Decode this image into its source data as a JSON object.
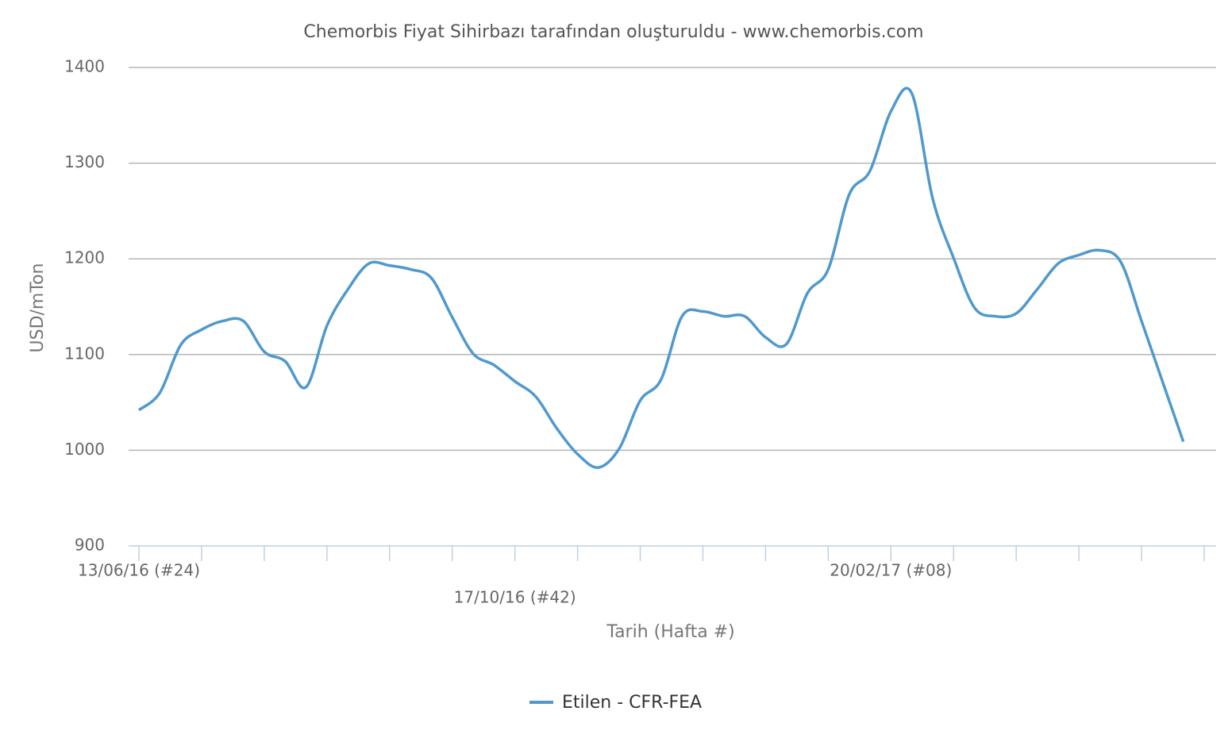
{
  "chart_data": {
    "type": "line",
    "title": "Chemorbis Fiyat Sihirbazı tarafından oluşturuldu - www.chemorbis.com",
    "x_label": "Tarih (Hafta #)",
    "y_label": "USD/mTon",
    "categories": [
      "13/06/16 (#24)",
      null,
      null,
      null,
      null,
      null,
      null,
      null,
      null,
      null,
      null,
      null,
      null,
      null,
      null,
      null,
      null,
      null,
      "17/10/16 (#42)",
      null,
      null,
      null,
      null,
      null,
      null,
      null,
      null,
      null,
      null,
      null,
      null,
      null,
      null,
      null,
      null,
      null,
      "20/02/17 (#08)",
      null,
      null,
      null,
      null,
      null,
      null,
      null,
      null,
      null,
      null,
      null,
      null,
      null,
      null
    ],
    "series": [
      {
        "name": "Etilen - CFR-FEA",
        "color": "#4f99cd",
        "values": [
          1042,
          1060,
          1110,
          1126,
          1135,
          1135,
          1103,
          1093,
          1066,
          1130,
          1168,
          1195,
          1193,
          1189,
          1180,
          1139,
          1101,
          1089,
          1072,
          1056,
          1023,
          996,
          982,
          1002,
          1052,
          1074,
          1140,
          1145,
          1140,
          1140,
          1118,
          1111,
          1164,
          1189,
          1267,
          1292,
          1354,
          1373,
          1263,
          1201,
          1149,
          1140,
          1143,
          1168,
          1195,
          1204,
          1209,
          1197,
          1135,
          1072,
          1009
        ]
      }
    ],
    "ylim": [
      900,
      1400
    ],
    "yticks": [
      900,
      1000,
      1100,
      1200,
      1300,
      1400
    ],
    "grid": true
  }
}
